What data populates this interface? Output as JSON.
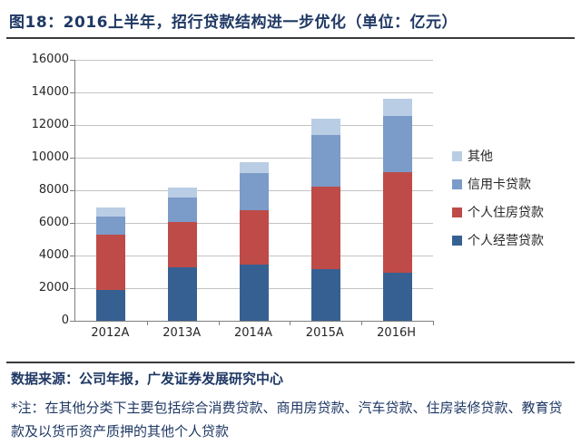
{
  "title": "图18：2016上半年，招行贷款结构进一步优化（单位：亿元）",
  "footer": {
    "source": "数据来源：公司年报，广发证券发展研究中心",
    "note": "*注：在其他分类下主要包括综合消费贷款、商用房贷款、汽车贷款、住房装修贷款、教育贷款及以货币资产质押的其他个人贷款"
  },
  "colors": {
    "title_text": "#1F3864",
    "axis": "#7f7f7f",
    "gridline": "#c3c3c3",
    "series_dark_blue": "#366092",
    "series_red": "#BE4B48",
    "series_medium_blue": "#7B9BC8",
    "series_light_blue": "#B9CDE4"
  },
  "chart_data": {
    "type": "bar",
    "stacked": true,
    "title": "图18：2016上半年，招行贷款结构进一步优化（单位：亿元）",
    "unit": "亿元",
    "categories": [
      "2012A",
      "2013A",
      "2014A",
      "2015A",
      "2016H"
    ],
    "series": [
      {
        "name": "个人经营贷款",
        "color": "#366092",
        "values": [
          1900,
          3300,
          3450,
          3150,
          2950
        ]
      },
      {
        "name": "个人住房贷款",
        "color": "#BE4B48",
        "values": [
          3400,
          2750,
          3350,
          5050,
          6150
        ]
      },
      {
        "name": "信用卡贷款",
        "color": "#7B9BC8",
        "values": [
          1100,
          1500,
          2250,
          3200,
          3450
        ]
      },
      {
        "name": "其他",
        "color": "#B9CDE4",
        "values": [
          550,
          600,
          700,
          1000,
          1050
        ]
      }
    ],
    "totals": [
      6950,
      8150,
      9750,
      12400,
      13600
    ],
    "ylim": [
      0,
      16000
    ],
    "yticks": [
      0,
      2000,
      4000,
      6000,
      8000,
      10000,
      12000,
      14000,
      16000
    ],
    "xlabel": "",
    "ylabel": "",
    "grid": true,
    "legend_position": "right",
    "legend_order_top_to_bottom": [
      "其他",
      "信用卡贷款",
      "个人住房贷款",
      "个人经营贷款"
    ]
  }
}
